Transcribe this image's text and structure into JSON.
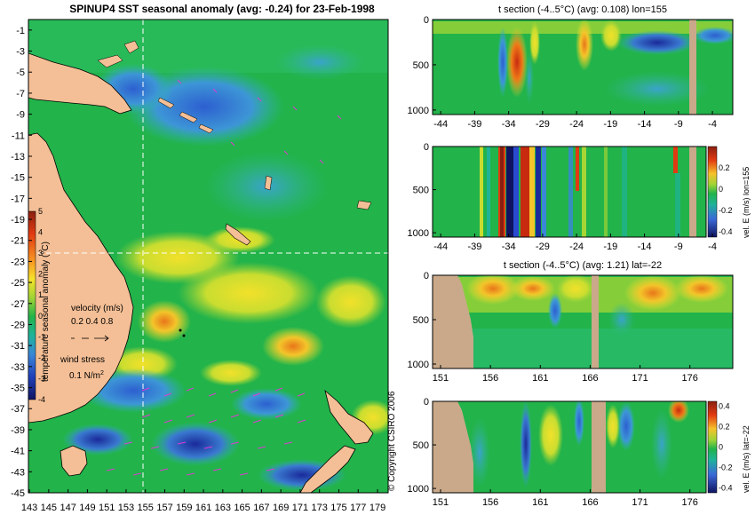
{
  "main_map": {
    "title": "SPINUP4 SST seasonal anomaly (avg: -0.24) for 23-Feb-1998",
    "y_ticks": [
      "-1",
      "-3",
      "-5",
      "-7",
      "-9",
      "-11",
      "-13",
      "-15",
      "-17",
      "-19",
      "-21",
      "-23",
      "-25",
      "-27",
      "-29",
      "-31",
      "-33",
      "-35",
      "-37",
      "-39",
      "-41",
      "-43",
      "-45"
    ],
    "x_ticks": [
      "143",
      "145",
      "147",
      "149",
      "151",
      "153",
      "155",
      "157",
      "159",
      "161",
      "163",
      "165",
      "167",
      "169",
      "171",
      "173",
      "175",
      "177",
      "179"
    ],
    "colorbar_label": "temperature seasonal anomaly (°C)",
    "colorbar_ticks": [
      "5",
      "4",
      "3",
      "2",
      "1",
      "0",
      "-1",
      "-2",
      "-3",
      "-4"
    ],
    "velocity_label": "velocity (m/s)",
    "velocity_scale": "0.2 0.4 0.8",
    "wind_label": "wind stress",
    "wind_scale": "0.1 N/m",
    "wind_scale_sup": "2",
    "section_lon": 155,
    "section_lat": -22
  },
  "panels": [
    {
      "id": "p1",
      "title": "t section (-4..5°C) (avg: 0.108) lon=155",
      "y_ticks": [
        "0",
        "500",
        "1000"
      ],
      "x_ticks": [
        "-44",
        "-39",
        "-34",
        "-29",
        "-24",
        "-19",
        "-14",
        "-9",
        "-4"
      ],
      "colorbar_label": "",
      "colorbar_ticks": []
    },
    {
      "id": "p2",
      "title": "",
      "y_ticks": [
        "0",
        "500",
        "1000"
      ],
      "x_ticks": [
        "-44",
        "-39",
        "-34",
        "-29",
        "-24",
        "-19",
        "-14",
        "-9",
        "-4"
      ],
      "colorbar_label": "vel. E (m/s) lon=155",
      "colorbar_ticks": [
        "0.2",
        "0",
        "-0.2",
        "-0.4"
      ]
    },
    {
      "id": "p3",
      "title": "t section (-4..5°C) (avg: 1.21) lat=-22",
      "y_ticks": [
        "0",
        "500",
        "1000"
      ],
      "x_ticks": [
        "151",
        "156",
        "161",
        "166",
        "171",
        "176"
      ],
      "colorbar_label": "",
      "colorbar_ticks": []
    },
    {
      "id": "p4",
      "title": "",
      "y_ticks": [
        "0",
        "500",
        "1000"
      ],
      "x_ticks": [
        "151",
        "156",
        "161",
        "166",
        "171",
        "176"
      ],
      "colorbar_label": "vel. E (m/s) lat=-22",
      "colorbar_ticks": [
        "0.4",
        "0.2",
        "0",
        "-0.2",
        "-0.4"
      ]
    }
  ],
  "copyright": "© Copyright CSIRO 2006",
  "chart_data": [
    {
      "type": "heatmap",
      "title": "SPINUP4 SST seasonal anomaly (avg: -0.24) for 23-Feb-1998",
      "xlabel": "",
      "ylabel": "",
      "xlim": [
        143,
        180
      ],
      "ylim": [
        -45,
        0
      ],
      "colorbar": {
        "label": "temperature seasonal anomaly (°C)",
        "range": [
          -4,
          5
        ]
      },
      "grid": false
    },
    {
      "type": "heatmap",
      "title": "t section (-4..5°C) (avg: 0.108) lon=155",
      "xlim": [
        -45,
        -1
      ],
      "ylim": [
        1050,
        0
      ],
      "grid": false
    },
    {
      "type": "heatmap",
      "title": "",
      "xlim": [
        -45,
        -1
      ],
      "ylim": [
        1050,
        0
      ],
      "colorbar": {
        "label": "vel. E (m/s) lon=155",
        "range": [
          -0.4,
          0.4
        ]
      },
      "grid": false
    },
    {
      "type": "heatmap",
      "title": "t section (-4..5°C) (avg: 1.21) lat=-22",
      "xlim": [
        150,
        180
      ],
      "ylim": [
        1050,
        0
      ],
      "grid": false
    },
    {
      "type": "heatmap",
      "title": "",
      "xlim": [
        150,
        180
      ],
      "ylim": [
        1050,
        0
      ],
      "colorbar": {
        "label": "vel. E (m/s) lat=-22",
        "range": [
          -0.4,
          0.4
        ]
      },
      "grid": false
    }
  ]
}
